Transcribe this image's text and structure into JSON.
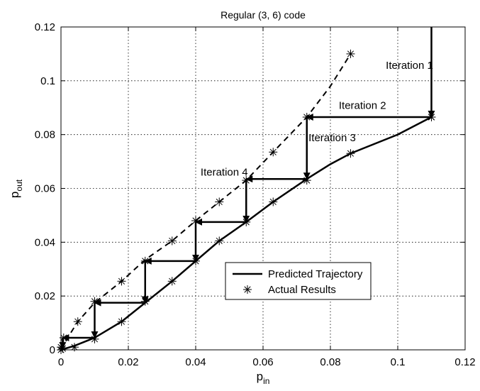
{
  "chart_data": {
    "type": "line",
    "title": "Regular (3, 6) code",
    "xlabel_main": "p",
    "xlabel_sub": "in",
    "ylabel_main": "p",
    "ylabel_sub": "out",
    "xlim": [
      0,
      0.12
    ],
    "ylim": [
      0,
      0.12
    ],
    "xticks": [
      0,
      0.02,
      0.04,
      0.06,
      0.08,
      0.1,
      0.12
    ],
    "yticks": [
      0,
      0.02,
      0.04,
      0.06,
      0.08,
      0.1,
      0.12
    ],
    "xtick_labels": [
      "0",
      "0.02",
      "0.04",
      "0.06",
      "0.08",
      "0.1",
      "0.12"
    ],
    "ytick_labels": [
      "0",
      "0.02",
      "0.04",
      "0.06",
      "0.08",
      "0.1",
      "0.12"
    ],
    "grid": true,
    "legend_position": "lower-right",
    "series": [
      {
        "name": "Predicted Trajectory",
        "style": "solid",
        "x": [
          0,
          0.004,
          0.01,
          0.018,
          0.025,
          0.033,
          0.04,
          0.047,
          0.055,
          0.063,
          0.073,
          0.08,
          0.086,
          0.1,
          0.11
        ],
        "y": [
          0,
          0.0015,
          0.0045,
          0.0105,
          0.0175,
          0.0255,
          0.033,
          0.0405,
          0.0475,
          0.055,
          0.0635,
          0.069,
          0.073,
          0.08,
          0.0865
        ]
      },
      {
        "name": "",
        "style": "dashed",
        "x": [
          0,
          0.002,
          0.005,
          0.01,
          0.018,
          0.025,
          0.033,
          0.04,
          0.047,
          0.055,
          0.063,
          0.073,
          0.08,
          0.086
        ],
        "y": [
          0,
          0.0045,
          0.0105,
          0.0175,
          0.0255,
          0.0335,
          0.0405,
          0.048,
          0.055,
          0.063,
          0.0735,
          0.0865,
          0.098,
          0.11
        ]
      },
      {
        "name": "Actual Results",
        "style": "markers",
        "x": [
          0,
          0.0005,
          0.004,
          0.01,
          0.018,
          0.025,
          0.033,
          0.04,
          0.047,
          0.055,
          0.063,
          0.073,
          0.086,
          0.11,
          0,
          0.0008,
          0.005,
          0.01,
          0.018,
          0.025,
          0.033,
          0.04,
          0.047,
          0.055,
          0.063,
          0.073,
          0.086,
          0.11
        ],
        "y": [
          0,
          0.0005,
          0.001,
          0.004,
          0.0105,
          0.018,
          0.0255,
          0.033,
          0.0405,
          0.0475,
          0.055,
          0.063,
          0.073,
          0.0865,
          0.001,
          0.0045,
          0.0105,
          0.018,
          0.0255,
          0.033,
          0.0405,
          0.048,
          0.055,
          0.063,
          0.0735,
          0.0865,
          0.11,
          0.0865
        ]
      }
    ],
    "staircase_arrows": [
      {
        "from": [
          0.11,
          0.12
        ],
        "to": [
          0.11,
          0.0865
        ]
      },
      {
        "from": [
          0.11,
          0.0865
        ],
        "to": [
          0.073,
          0.0865
        ]
      },
      {
        "from": [
          0.073,
          0.0865
        ],
        "to": [
          0.073,
          0.0635
        ]
      },
      {
        "from": [
          0.073,
          0.0635
        ],
        "to": [
          0.055,
          0.0635
        ]
      },
      {
        "from": [
          0.055,
          0.0635
        ],
        "to": [
          0.055,
          0.0475
        ]
      },
      {
        "from": [
          0.055,
          0.0475
        ],
        "to": [
          0.04,
          0.0475
        ]
      },
      {
        "from": [
          0.04,
          0.0475
        ],
        "to": [
          0.04,
          0.033
        ]
      },
      {
        "from": [
          0.04,
          0.033
        ],
        "to": [
          0.025,
          0.033
        ]
      },
      {
        "from": [
          0.025,
          0.033
        ],
        "to": [
          0.025,
          0.0175
        ]
      },
      {
        "from": [
          0.025,
          0.0175
        ],
        "to": [
          0.01,
          0.0175
        ]
      },
      {
        "from": [
          0.01,
          0.0175
        ],
        "to": [
          0.01,
          0.0045
        ]
      },
      {
        "from": [
          0.01,
          0.0045
        ],
        "to": [
          0.0005,
          0.0045
        ]
      },
      {
        "from": [
          0.0005,
          0.0045
        ],
        "to": [
          0.0005,
          0.0005
        ]
      }
    ],
    "annotations": [
      {
        "text": "Iteration 1",
        "x": 0.1105,
        "y": 0.1045,
        "anchor": "end"
      },
      {
        "text": "Iteration 2",
        "x": 0.0825,
        "y": 0.0895,
        "anchor": "start"
      },
      {
        "text": "Iteration 3",
        "x": 0.0735,
        "y": 0.0775,
        "anchor": "start"
      },
      {
        "text": "Iteration 4",
        "x": 0.0555,
        "y": 0.0648,
        "anchor": "end"
      }
    ],
    "legend": [
      {
        "label": "Predicted Trajectory",
        "symbol": "line"
      },
      {
        "label": "Actual Results",
        "symbol": "asterisk"
      }
    ]
  }
}
